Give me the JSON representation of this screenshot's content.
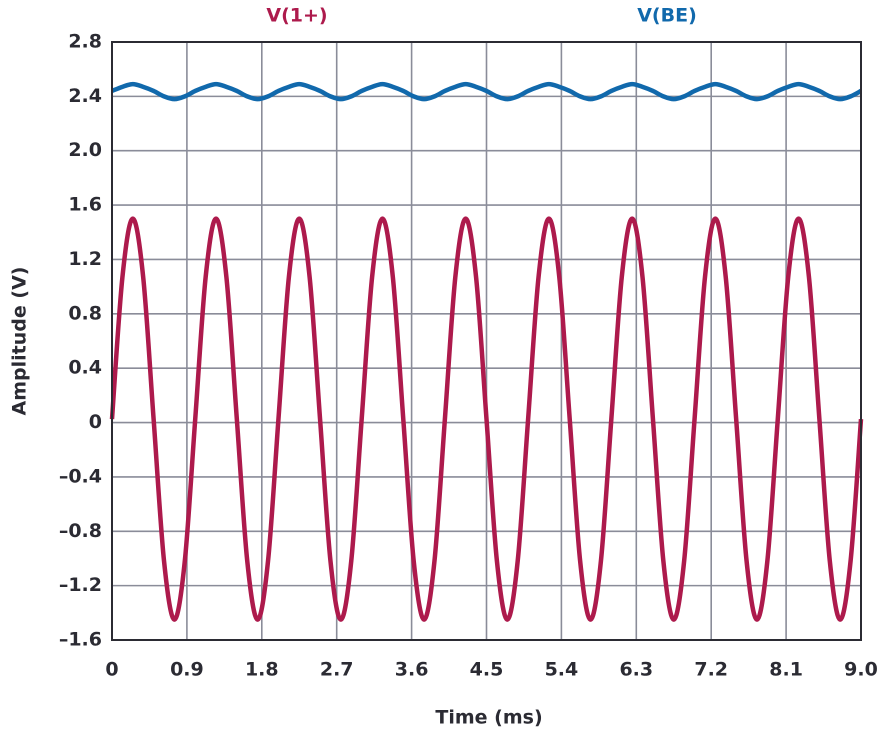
{
  "chart_data": {
    "type": "line",
    "xlabel": "Time (ms)",
    "ylabel": "Amplitude (V)",
    "x": [
      0,
      0.125,
      0.25,
      0.375,
      0.5,
      0.625,
      0.75,
      0.875,
      1,
      1.125,
      1.25,
      1.375,
      1.5,
      1.625,
      1.75,
      1.875,
      2,
      2.125,
      2.25,
      2.375,
      2.5,
      2.625,
      2.75,
      2.875,
      3,
      3.125,
      3.25,
      3.375,
      3.5,
      3.625,
      3.75,
      3.875,
      4,
      4.125,
      4.25,
      4.375,
      4.5,
      4.625,
      4.75,
      4.875,
      5,
      5.125,
      5.25,
      5.375,
      5.5,
      5.625,
      5.75,
      5.875,
      6,
      6.125,
      6.25,
      6.375,
      6.5,
      6.625,
      6.75,
      6.875,
      7,
      7.125,
      7.25,
      7.375,
      7.5,
      7.625,
      7.75,
      7.875,
      8,
      8.125,
      8.25,
      8.375,
      8.5,
      8.625,
      8.75,
      8.875,
      9
    ],
    "series": [
      {
        "name": "V(1+)",
        "color": "#ad1a4c",
        "values": [
          0.025,
          1.068,
          1.5,
          1.068,
          0.025,
          -1.018,
          -1.45,
          -1.018,
          0.025,
          1.068,
          1.5,
          1.068,
          0.025,
          -1.018,
          -1.45,
          -1.018,
          0.025,
          1.068,
          1.5,
          1.068,
          0.025,
          -1.018,
          -1.45,
          -1.018,
          0.025,
          1.068,
          1.5,
          1.068,
          0.025,
          -1.018,
          -1.45,
          -1.018,
          0.025,
          1.068,
          1.5,
          1.068,
          0.025,
          -1.018,
          -1.45,
          -1.018,
          0.025,
          1.068,
          1.5,
          1.068,
          0.025,
          -1.018,
          -1.45,
          -1.018,
          0.025,
          1.068,
          1.5,
          1.068,
          0.025,
          -1.018,
          -1.45,
          -1.018,
          0.025,
          1.068,
          1.5,
          1.068,
          0.025,
          -1.018,
          -1.45,
          -1.018,
          0.025,
          1.068,
          1.5,
          1.068,
          0.025,
          -1.018,
          -1.45,
          -1.018,
          0.025
        ]
      },
      {
        "name": "V(BE)",
        "color": "#1169ac",
        "values": [
          2.44,
          2.47,
          2.49,
          2.47,
          2.44,
          2.4,
          2.38,
          2.4,
          2.44,
          2.47,
          2.49,
          2.47,
          2.44,
          2.4,
          2.38,
          2.4,
          2.44,
          2.47,
          2.49,
          2.47,
          2.44,
          2.4,
          2.38,
          2.4,
          2.44,
          2.47,
          2.49,
          2.47,
          2.44,
          2.4,
          2.38,
          2.4,
          2.44,
          2.47,
          2.49,
          2.47,
          2.44,
          2.4,
          2.38,
          2.4,
          2.44,
          2.47,
          2.49,
          2.47,
          2.44,
          2.4,
          2.38,
          2.4,
          2.44,
          2.47,
          2.49,
          2.47,
          2.44,
          2.4,
          2.38,
          2.4,
          2.44,
          2.47,
          2.49,
          2.47,
          2.44,
          2.4,
          2.38,
          2.4,
          2.44,
          2.47,
          2.49,
          2.47,
          2.44,
          2.4,
          2.38,
          2.4,
          2.44
        ]
      }
    ],
    "xlim": [
      0,
      9
    ],
    "xticks": [
      0,
      0.9,
      1.8,
      2.7,
      3.6,
      4.5,
      5.4,
      6.3,
      7.2,
      8.1,
      {
        "value": 9,
        "label": "9.0"
      }
    ],
    "ylim": [
      -1.6,
      2.8
    ],
    "yticks": [
      {
        "value": -1.6,
        "label": "–1.6"
      },
      {
        "value": -1.2,
        "label": "–1.2"
      },
      {
        "value": -0.8,
        "label": "–0.8"
      },
      {
        "value": -0.4,
        "label": "–0.4"
      },
      0,
      0.4,
      0.8,
      1.2,
      1.6,
      {
        "value": 2,
        "label": "2.0"
      },
      2.4,
      2.8
    ],
    "grid": true,
    "legend": "top"
  }
}
